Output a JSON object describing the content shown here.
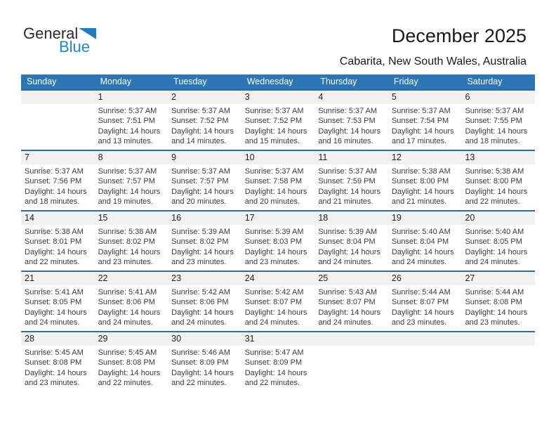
{
  "logo": {
    "general": "General",
    "blue": "Blue"
  },
  "header": {
    "title": "December 2025",
    "subtitle": "Cabarita, New South Wales, Australia"
  },
  "colors": {
    "header_bar_blue": "#2e75b6",
    "row_divider_blue": "#2a6eb0",
    "day_number_strip_gray": "#f1f1f1",
    "logo_blue": "#1e87c9",
    "body_text": "#3a3a3a"
  },
  "weekdays": [
    "Sunday",
    "Monday",
    "Tuesday",
    "Wednesday",
    "Thursday",
    "Friday",
    "Saturday"
  ],
  "weeks": [
    [
      null,
      {
        "day": "1",
        "sunrise": "Sunrise: 5:37 AM",
        "sunset": "Sunset: 7:51 PM",
        "daylight": "Daylight: 14 hours and 13 minutes."
      },
      {
        "day": "2",
        "sunrise": "Sunrise: 5:37 AM",
        "sunset": "Sunset: 7:52 PM",
        "daylight": "Daylight: 14 hours and 14 minutes."
      },
      {
        "day": "3",
        "sunrise": "Sunrise: 5:37 AM",
        "sunset": "Sunset: 7:52 PM",
        "daylight": "Daylight: 14 hours and 15 minutes."
      },
      {
        "day": "4",
        "sunrise": "Sunrise: 5:37 AM",
        "sunset": "Sunset: 7:53 PM",
        "daylight": "Daylight: 14 hours and 16 minutes."
      },
      {
        "day": "5",
        "sunrise": "Sunrise: 5:37 AM",
        "sunset": "Sunset: 7:54 PM",
        "daylight": "Daylight: 14 hours and 17 minutes."
      },
      {
        "day": "6",
        "sunrise": "Sunrise: 5:37 AM",
        "sunset": "Sunset: 7:55 PM",
        "daylight": "Daylight: 14 hours and 18 minutes."
      }
    ],
    [
      {
        "day": "7",
        "sunrise": "Sunrise: 5:37 AM",
        "sunset": "Sunset: 7:56 PM",
        "daylight": "Daylight: 14 hours and 18 minutes."
      },
      {
        "day": "8",
        "sunrise": "Sunrise: 5:37 AM",
        "sunset": "Sunset: 7:57 PM",
        "daylight": "Daylight: 14 hours and 19 minutes."
      },
      {
        "day": "9",
        "sunrise": "Sunrise: 5:37 AM",
        "sunset": "Sunset: 7:57 PM",
        "daylight": "Daylight: 14 hours and 20 minutes."
      },
      {
        "day": "10",
        "sunrise": "Sunrise: 5:37 AM",
        "sunset": "Sunset: 7:58 PM",
        "daylight": "Daylight: 14 hours and 20 minutes."
      },
      {
        "day": "11",
        "sunrise": "Sunrise: 5:37 AM",
        "sunset": "Sunset: 7:59 PM",
        "daylight": "Daylight: 14 hours and 21 minutes."
      },
      {
        "day": "12",
        "sunrise": "Sunrise: 5:38 AM",
        "sunset": "Sunset: 8:00 PM",
        "daylight": "Daylight: 14 hours and 21 minutes."
      },
      {
        "day": "13",
        "sunrise": "Sunrise: 5:38 AM",
        "sunset": "Sunset: 8:00 PM",
        "daylight": "Daylight: 14 hours and 22 minutes."
      }
    ],
    [
      {
        "day": "14",
        "sunrise": "Sunrise: 5:38 AM",
        "sunset": "Sunset: 8:01 PM",
        "daylight": "Daylight: 14 hours and 22 minutes."
      },
      {
        "day": "15",
        "sunrise": "Sunrise: 5:38 AM",
        "sunset": "Sunset: 8:02 PM",
        "daylight": "Daylight: 14 hours and 23 minutes."
      },
      {
        "day": "16",
        "sunrise": "Sunrise: 5:39 AM",
        "sunset": "Sunset: 8:02 PM",
        "daylight": "Daylight: 14 hours and 23 minutes."
      },
      {
        "day": "17",
        "sunrise": "Sunrise: 5:39 AM",
        "sunset": "Sunset: 8:03 PM",
        "daylight": "Daylight: 14 hours and 23 minutes."
      },
      {
        "day": "18",
        "sunrise": "Sunrise: 5:39 AM",
        "sunset": "Sunset: 8:04 PM",
        "daylight": "Daylight: 14 hours and 24 minutes."
      },
      {
        "day": "19",
        "sunrise": "Sunrise: 5:40 AM",
        "sunset": "Sunset: 8:04 PM",
        "daylight": "Daylight: 14 hours and 24 minutes."
      },
      {
        "day": "20",
        "sunrise": "Sunrise: 5:40 AM",
        "sunset": "Sunset: 8:05 PM",
        "daylight": "Daylight: 14 hours and 24 minutes."
      }
    ],
    [
      {
        "day": "21",
        "sunrise": "Sunrise: 5:41 AM",
        "sunset": "Sunset: 8:05 PM",
        "daylight": "Daylight: 14 hours and 24 minutes."
      },
      {
        "day": "22",
        "sunrise": "Sunrise: 5:41 AM",
        "sunset": "Sunset: 8:06 PM",
        "daylight": "Daylight: 14 hours and 24 minutes."
      },
      {
        "day": "23",
        "sunrise": "Sunrise: 5:42 AM",
        "sunset": "Sunset: 8:06 PM",
        "daylight": "Daylight: 14 hours and 24 minutes."
      },
      {
        "day": "24",
        "sunrise": "Sunrise: 5:42 AM",
        "sunset": "Sunset: 8:07 PM",
        "daylight": "Daylight: 14 hours and 24 minutes."
      },
      {
        "day": "25",
        "sunrise": "Sunrise: 5:43 AM",
        "sunset": "Sunset: 8:07 PM",
        "daylight": "Daylight: 14 hours and 24 minutes."
      },
      {
        "day": "26",
        "sunrise": "Sunrise: 5:44 AM",
        "sunset": "Sunset: 8:07 PM",
        "daylight": "Daylight: 14 hours and 23 minutes."
      },
      {
        "day": "27",
        "sunrise": "Sunrise: 5:44 AM",
        "sunset": "Sunset: 8:08 PM",
        "daylight": "Daylight: 14 hours and 23 minutes."
      }
    ],
    [
      {
        "day": "28",
        "sunrise": "Sunrise: 5:45 AM",
        "sunset": "Sunset: 8:08 PM",
        "daylight": "Daylight: 14 hours and 23 minutes."
      },
      {
        "day": "29",
        "sunrise": "Sunrise: 5:45 AM",
        "sunset": "Sunset: 8:08 PM",
        "daylight": "Daylight: 14 hours and 22 minutes."
      },
      {
        "day": "30",
        "sunrise": "Sunrise: 5:46 AM",
        "sunset": "Sunset: 8:09 PM",
        "daylight": "Daylight: 14 hours and 22 minutes."
      },
      {
        "day": "31",
        "sunrise": "Sunrise: 5:47 AM",
        "sunset": "Sunset: 8:09 PM",
        "daylight": "Daylight: 14 hours and 22 minutes."
      },
      null,
      null,
      null
    ]
  ]
}
